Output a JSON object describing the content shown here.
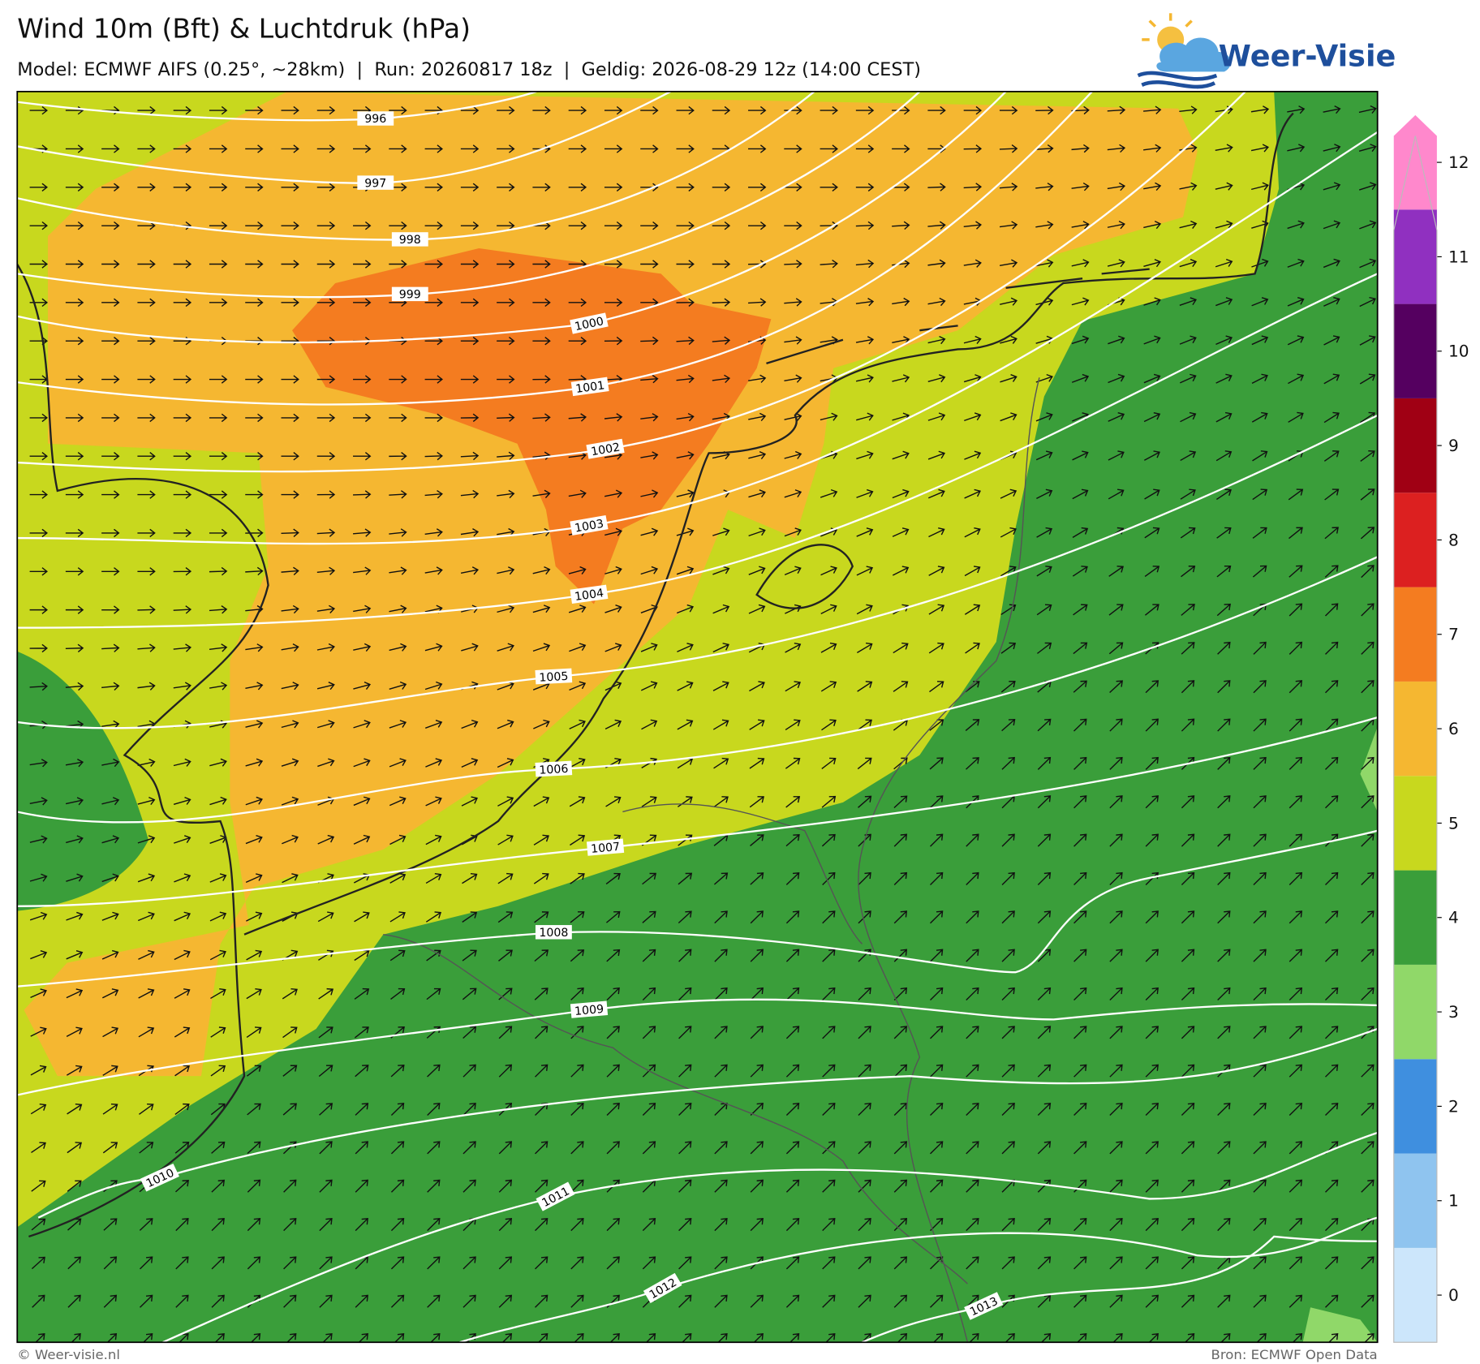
{
  "header": {
    "title": "Wind 10m (Bft) & Luchtdruk (hPa)",
    "subtitle": "Model: ECMWF AIFS (0.25°, ~28km)  |  Run: 20260817 18z  |  Geldig: 2026-08-29 12z (14:00 CEST)",
    "logo": "Weer-Visie"
  },
  "colorbar": {
    "levels": [
      {
        "label": 0,
        "color": "#cce6fb"
      },
      {
        "label": 1,
        "color": "#8fc4ef"
      },
      {
        "label": 2,
        "color": "#3f8fdf"
      },
      {
        "label": 3,
        "color": "#90d869"
      },
      {
        "label": 4,
        "color": "#3a9e3a"
      },
      {
        "label": 5,
        "color": "#c8d81e"
      },
      {
        "label": 6,
        "color": "#f5b731"
      },
      {
        "label": 7,
        "color": "#f47c20"
      },
      {
        "label": 8,
        "color": "#dc2020"
      },
      {
        "label": 9,
        "color": "#a00014"
      },
      {
        "label": 10,
        "color": "#550060"
      },
      {
        "label": 11,
        "color": "#9030c0"
      },
      {
        "label": 12,
        "color": "#ff88cc"
      }
    ]
  },
  "isobar_labels": [
    996,
    997,
    998,
    999,
    1000,
    1001,
    1002,
    1003,
    1004,
    1005,
    1006,
    1007,
    1008,
    1009,
    1010,
    1011,
    1012,
    1013
  ],
  "footer": {
    "left": "© Weer-visie.nl",
    "right": "Bron: ECMWF Open Data"
  }
}
